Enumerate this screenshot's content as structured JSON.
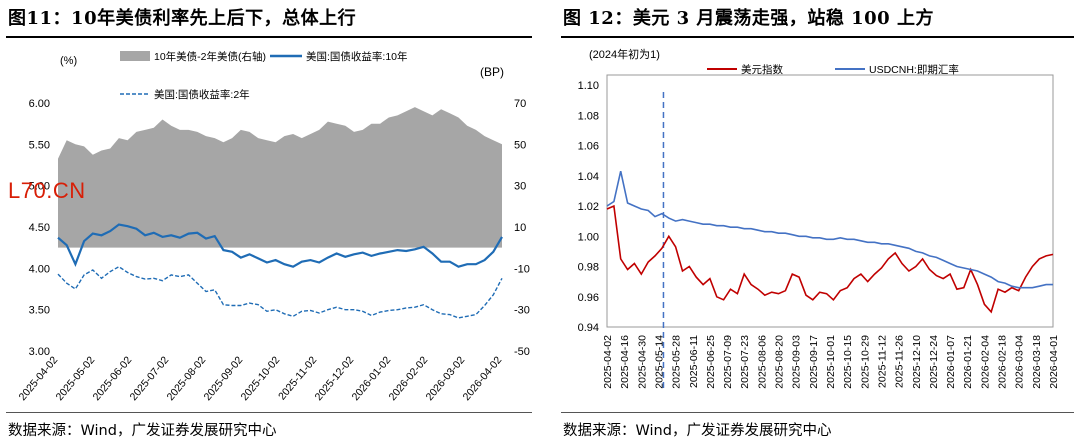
{
  "left": {
    "title": "图11：10年美债利率先上后下，总体上行",
    "source": "数据来源：Wind，广发证券发展研究中心",
    "watermark": "L70.CN",
    "chart_data": {
      "type": "area",
      "title": "10年美债利率先上后下，总体上行",
      "left_axis_unit": "(%)",
      "right_axis_unit": "(BP)",
      "ylim": [
        3.0,
        6.0
      ],
      "y_ticks": [
        "6.00",
        "5.50",
        "5.00",
        "4.50",
        "4.00",
        "3.50",
        "3.00"
      ],
      "y2lim": [
        -50,
        70
      ],
      "y2_ticks": [
        "70",
        "50",
        "30",
        "10",
        "-10",
        "-30",
        "-50"
      ],
      "x_ticks": [
        "2025-04-02",
        "2025-05-02",
        "2025-06-02",
        "2025-07-02",
        "2025-08-02",
        "2025-09-02",
        "2025-10-02",
        "2025-11-02",
        "2025-12-02",
        "2026-01-02",
        "2026-02-02",
        "2026-03-02",
        "2026-04-02"
      ],
      "legend": [
        "10年美债-2年美债(右轴)",
        "美国:国债收益率:10年",
        "美国:国债收益率:2年"
      ],
      "series": [
        {
          "name": "10年美债-2年美债(右轴)",
          "axis": "right",
          "color": "#a6a6a6",
          "values": [
            43,
            52,
            50,
            49,
            45,
            47,
            48,
            53,
            52,
            56,
            57,
            58,
            62,
            59,
            57,
            57,
            56,
            54,
            53,
            51,
            53,
            57,
            56,
            53,
            52,
            51,
            54,
            55,
            53,
            55,
            57,
            61,
            60,
            59,
            56,
            57,
            60,
            60,
            63,
            64,
            66,
            68,
            66,
            64,
            67,
            65,
            63,
            59,
            57,
            54,
            52,
            50
          ]
        },
        {
          "name": "美国:国债收益率:10年",
          "axis": "left",
          "color": "#1f6cb5",
          "values": [
            4.37,
            4.28,
            4.05,
            4.33,
            4.42,
            4.4,
            4.45,
            4.53,
            4.51,
            4.48,
            4.4,
            4.43,
            4.38,
            4.4,
            4.37,
            4.42,
            4.43,
            4.36,
            4.39,
            4.22,
            4.2,
            4.13,
            4.17,
            4.12,
            4.07,
            4.1,
            4.05,
            4.02,
            4.08,
            4.1,
            4.07,
            4.13,
            4.18,
            4.14,
            4.17,
            4.19,
            4.15,
            4.18,
            4.2,
            4.22,
            4.21,
            4.23,
            4.26,
            4.18,
            4.08,
            4.08,
            4.02,
            4.05,
            4.05,
            4.1,
            4.2,
            4.38
          ]
        },
        {
          "name": "美国:国债收益率:2年",
          "axis": "left",
          "color": "#1f6cb5",
          "dashed": true,
          "values": [
            3.93,
            3.82,
            3.75,
            3.92,
            3.98,
            3.88,
            3.96,
            4.02,
            3.95,
            3.9,
            3.87,
            3.88,
            3.85,
            3.92,
            3.9,
            3.92,
            3.82,
            3.72,
            3.74,
            3.56,
            3.55,
            3.55,
            3.58,
            3.56,
            3.48,
            3.5,
            3.45,
            3.42,
            3.48,
            3.49,
            3.46,
            3.5,
            3.53,
            3.5,
            3.5,
            3.48,
            3.43,
            3.47,
            3.49,
            3.5,
            3.52,
            3.53,
            3.56,
            3.5,
            3.45,
            3.44,
            3.4,
            3.42,
            3.44,
            3.55,
            3.68,
            3.88
          ]
        }
      ]
    }
  },
  "right": {
    "title": "图 12：美元 3 月震荡走强，站稳 100 上方",
    "source": "数据来源：Wind，广发证券发展研究中心",
    "chart_data": {
      "type": "line",
      "title": "美元 3 月震荡走强，站稳 100 上方",
      "subtitle": "(2024年初为1)",
      "ylim": [
        0.94,
        1.1
      ],
      "y_ticks": [
        "1.10",
        "1.08",
        "1.06",
        "1.04",
        "1.02",
        "1.00",
        "0.98",
        "0.96",
        "0.94"
      ],
      "x_ticks": [
        "2025-04-02",
        "2025-04-16",
        "2025-04-30",
        "2025-05-14",
        "2025-05-28",
        "2025-06-11",
        "2025-06-25",
        "2025-07-09",
        "2025-07-23",
        "2025-08-06",
        "2025-08-20",
        "2025-09-03",
        "2025-09-17",
        "2025-10-01",
        "2025-10-15",
        "2025-10-29",
        "2025-11-12",
        "2025-11-26",
        "2025-12-10",
        "2025-12-24",
        "2026-01-07",
        "2026-01-21",
        "2026-02-04",
        "2026-02-18",
        "2026-03-04",
        "2026-03-18",
        "2026-04-01"
      ],
      "vline_at": "2025-05-14",
      "legend": [
        "美元指数",
        "USDCNH:即期汇率"
      ],
      "series": [
        {
          "name": "美元指数",
          "color": "#c00000",
          "values": [
            1.018,
            1.02,
            0.985,
            0.978,
            0.982,
            0.975,
            0.983,
            0.987,
            0.992,
            1.0,
            0.993,
            0.977,
            0.98,
            0.973,
            0.968,
            0.972,
            0.96,
            0.958,
            0.965,
            0.962,
            0.975,
            0.968,
            0.965,
            0.961,
            0.963,
            0.962,
            0.964,
            0.975,
            0.973,
            0.961,
            0.958,
            0.963,
            0.962,
            0.958,
            0.964,
            0.966,
            0.972,
            0.975,
            0.97,
            0.975,
            0.979,
            0.985,
            0.989,
            0.982,
            0.977,
            0.98,
            0.985,
            0.978,
            0.974,
            0.972,
            0.975,
            0.965,
            0.966,
            0.978,
            0.968,
            0.955,
            0.95,
            0.965,
            0.963,
            0.966,
            0.964,
            0.973,
            0.98,
            0.985,
            0.987,
            0.988
          ]
        },
        {
          "name": "USDCNH:即期汇率",
          "color": "#4472c4",
          "values": [
            1.02,
            1.023,
            1.043,
            1.022,
            1.02,
            1.018,
            1.017,
            1.013,
            1.015,
            1.012,
            1.01,
            1.011,
            1.01,
            1.009,
            1.008,
            1.008,
            1.007,
            1.007,
            1.006,
            1.006,
            1.005,
            1.005,
            1.004,
            1.003,
            1.003,
            1.002,
            1.002,
            1.001,
            1.0,
            1.0,
            0.999,
            0.999,
            0.998,
            0.998,
            0.999,
            0.998,
            0.998,
            0.997,
            0.996,
            0.996,
            0.995,
            0.995,
            0.994,
            0.993,
            0.992,
            0.99,
            0.989,
            0.987,
            0.986,
            0.984,
            0.982,
            0.98,
            0.979,
            0.978,
            0.977,
            0.975,
            0.973,
            0.97,
            0.969,
            0.967,
            0.966,
            0.966,
            0.966,
            0.967,
            0.968,
            0.968
          ]
        }
      ]
    }
  }
}
